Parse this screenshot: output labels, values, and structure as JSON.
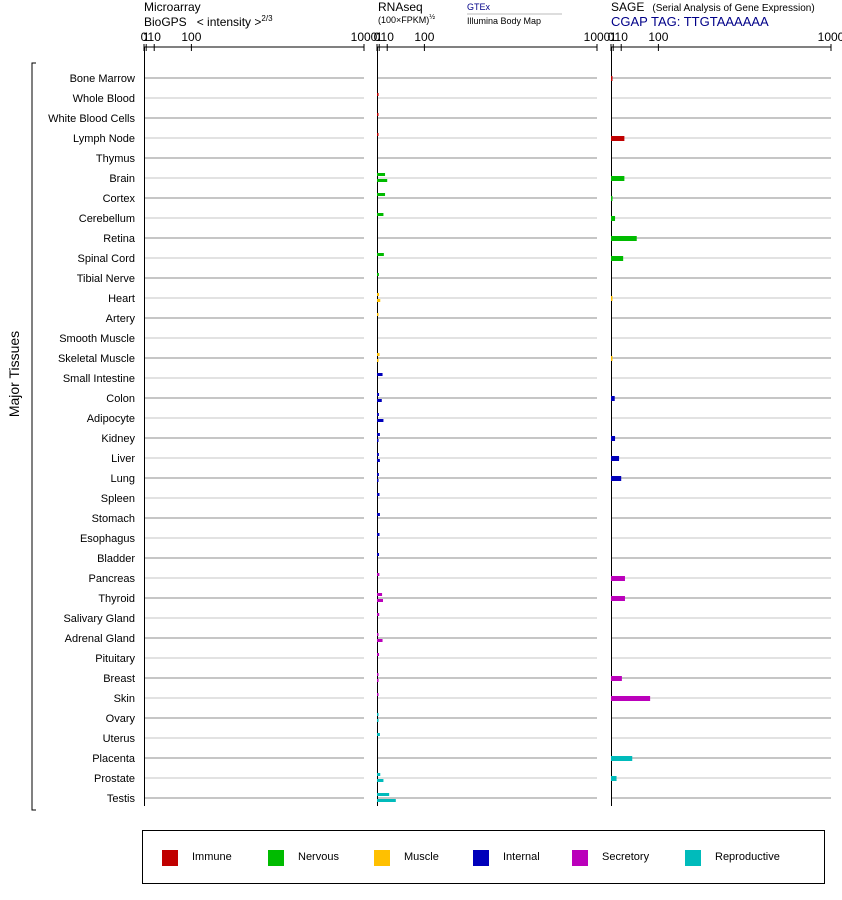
{
  "chart_data": {
    "type": "bar",
    "orientation": "horizontal",
    "group_label": "Major Tissues",
    "categories": [
      "Bone Marrow",
      "Whole Blood",
      "White Blood Cells",
      "Lymph Node",
      "Thymus",
      "Brain",
      "Cortex",
      "Cerebellum",
      "Retina",
      "Spinal Cord",
      "Tibial Nerve",
      "Heart",
      "Artery",
      "Smooth Muscle",
      "Skeletal Muscle",
      "Small Intestine",
      "Colon",
      "Adipocyte",
      "Kidney",
      "Liver",
      "Lung",
      "Spleen",
      "Stomach",
      "Esophagus",
      "Bladder",
      "Pancreas",
      "Thyroid",
      "Salivary Gland",
      "Adrenal Gland",
      "Pituitary",
      "Breast",
      "Skin",
      "Ovary",
      "Uterus",
      "Placenta",
      "Prostate",
      "Testis"
    ],
    "category_group": [
      "Immune",
      "Immune",
      "Immune",
      "Immune",
      "Immune",
      "Nervous",
      "Nervous",
      "Nervous",
      "Nervous",
      "Nervous",
      "Nervous",
      "Muscle",
      "Muscle",
      "Muscle",
      "Muscle",
      "Internal",
      "Internal",
      "Internal",
      "Internal",
      "Internal",
      "Internal",
      "Internal",
      "Internal",
      "Internal",
      "Internal",
      "Secretory",
      "Secretory",
      "Secretory",
      "Secretory",
      "Secretory",
      "Secretory",
      "Secretory",
      "Reproductive",
      "Reproductive",
      "Reproductive",
      "Reproductive",
      "Reproductive"
    ],
    "legend": [
      {
        "name": "Immune",
        "color": "#c00000"
      },
      {
        "name": "Nervous",
        "color": "#00bb00"
      },
      {
        "name": "Muscle",
        "color": "#ffc000"
      },
      {
        "name": "Internal",
        "color": "#0000bb"
      },
      {
        "name": "Secretory",
        "color": "#bb00bb"
      },
      {
        "name": "Reproductive",
        "color": "#00bbbb"
      }
    ],
    "panels": [
      {
        "id": "microarray",
        "title_line1": "Microarray",
        "title_line2": "BioGPS   < intensity >",
        "title_exp": "2/3",
        "ticks": [
          "0",
          "1",
          "10",
          "100",
          "1000"
        ],
        "xlim": [
          0,
          1000
        ],
        "series": []
      },
      {
        "id": "rnaseq",
        "title_line1": "RNAseq",
        "title_line2": "(100×FPKM)",
        "title_exp": "½",
        "source_gtex": "GTEx",
        "source_illumina": "Illumina Body Map",
        "ticks": [
          "0",
          "1",
          "10",
          "100",
          "1000"
        ],
        "xlim": [
          0,
          1000
        ],
        "series": [
          {
            "source": "GTEx",
            "values": [
              null,
              0.6,
              0.01,
              0.01,
              null,
              7,
              7,
              5,
              null,
              5.5,
              0.8,
              0.9,
              0.4,
              null,
              1.2,
              4,
              0.9,
              0.8,
              1.5,
              0.8,
              0.8,
              1.2,
              1.5,
              1.2,
              0.9,
              1.1,
              3.5,
              1.0,
              0.4,
              0.9,
              0.5,
              0.2,
              0.4,
              1.5,
              null,
              1.8,
              13
            ]
          },
          {
            "source": "Illumina Body Map",
            "values": [
              null,
              null,
              null,
              null,
              null,
              10,
              null,
              null,
              null,
              null,
              null,
              1.8,
              null,
              null,
              0.01,
              null,
              3.2,
              5,
              0.02,
              1.5,
              0.02,
              null,
              null,
              null,
              null,
              null,
              4.5,
              null,
              4,
              null,
              0.02,
              null,
              0.02,
              null,
              null,
              5,
              25
            ]
          }
        ]
      },
      {
        "id": "sage",
        "title_line1": "SAGE",
        "title_sub": "(Serial Analysis of Gene Expression)",
        "title_line2": "CGAP TAG: TTGTAAAAAA",
        "ticks": [
          "0",
          "1",
          "10",
          "100",
          "1000"
        ],
        "xlim": [
          0,
          1000
        ],
        "series": [
          {
            "values": [
              0.01,
              null,
              null,
              15,
              null,
              15,
              0.01,
              2.5,
              40,
              13,
              null,
              0.005,
              null,
              null,
              0.005,
              null,
              2.2,
              null,
              2.5,
              7,
              10,
              null,
              null,
              null,
              null,
              16,
              16,
              null,
              null,
              null,
              11,
              75,
              null,
              null,
              30,
              4,
              null
            ]
          }
        ]
      }
    ]
  }
}
